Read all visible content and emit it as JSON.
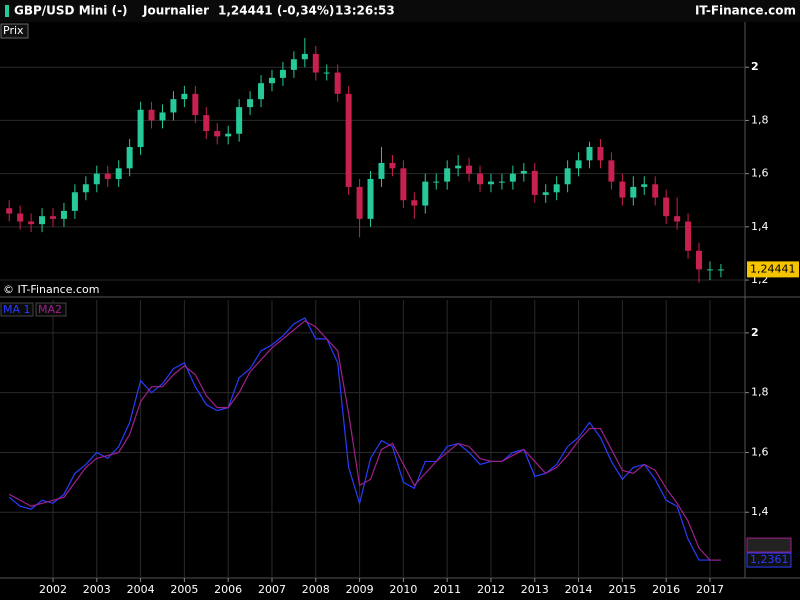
{
  "header": {
    "symbol": "GBP/USD Mini (-)",
    "period": "Journalier",
    "quote": "1,24441 (-0,34%)",
    "time": "13:26:53",
    "brand": "IT-Finance.com"
  },
  "chart_data": [
    {
      "type": "candlestick",
      "label": "Prix",
      "watermark": "© IT-Finance.com",
      "last_label": "1,24441",
      "up_color": "#26c99a",
      "down_color": "#c8204f",
      "grid": true,
      "xlim": [
        2000.79,
        2017.8
      ],
      "ylim": [
        1.14,
        2.17
      ],
      "yticks": [
        {
          "value": 1.2,
          "label": "1,2"
        },
        {
          "value": 1.4,
          "label": "1,4"
        },
        {
          "value": 1.6,
          "label": "1,6"
        },
        {
          "value": 1.8,
          "label": "1,8"
        },
        2
      ],
      "x": [
        2001,
        2001.25,
        2001.5,
        2001.75,
        2002,
        2002.25,
        2002.5,
        2002.75,
        2003,
        2003.25,
        2003.5,
        2003.75,
        2004,
        2004.25,
        2004.5,
        2004.75,
        2005,
        2005.25,
        2005.5,
        2005.75,
        2006,
        2006.25,
        2006.5,
        2006.75,
        2007,
        2007.25,
        2007.5,
        2007.75,
        2008,
        2008.25,
        2008.5,
        2008.75,
        2009,
        2009.25,
        2009.5,
        2009.75,
        2010,
        2010.25,
        2010.5,
        2010.75,
        2011,
        2011.25,
        2011.5,
        2011.75,
        2012,
        2012.25,
        2012.5,
        2012.75,
        2013,
        2013.25,
        2013.5,
        2013.75,
        2014,
        2014.25,
        2014.5,
        2014.75,
        2015,
        2015.25,
        2015.5,
        2015.75,
        2016,
        2016.25,
        2016.5,
        2016.75,
        2017,
        2017.25
      ],
      "open": [
        1.47,
        1.45,
        1.42,
        1.41,
        1.44,
        1.43,
        1.46,
        1.53,
        1.56,
        1.6,
        1.58,
        1.62,
        1.7,
        1.84,
        1.8,
        1.83,
        1.88,
        1.9,
        1.82,
        1.76,
        1.74,
        1.75,
        1.85,
        1.88,
        1.94,
        1.96,
        1.99,
        2.03,
        2.05,
        1.98,
        1.98,
        1.9,
        1.55,
        1.43,
        1.58,
        1.64,
        1.62,
        1.5,
        1.48,
        1.57,
        1.57,
        1.62,
        1.63,
        1.6,
        1.56,
        1.57,
        1.57,
        1.6,
        1.61,
        1.52,
        1.53,
        1.56,
        1.62,
        1.65,
        1.7,
        1.65,
        1.57,
        1.51,
        1.55,
        1.56,
        1.51,
        1.44,
        1.42,
        1.31,
        1.24,
        1.24
      ],
      "high": [
        1.5,
        1.48,
        1.45,
        1.47,
        1.47,
        1.49,
        1.56,
        1.59,
        1.63,
        1.63,
        1.65,
        1.73,
        1.87,
        1.87,
        1.86,
        1.91,
        1.93,
        1.93,
        1.85,
        1.79,
        1.78,
        1.88,
        1.91,
        1.97,
        1.99,
        2.02,
        2.06,
        2.11,
        2.08,
        2.01,
        2.01,
        1.93,
        1.58,
        1.61,
        1.7,
        1.67,
        1.65,
        1.53,
        1.6,
        1.6,
        1.65,
        1.67,
        1.66,
        1.63,
        1.6,
        1.6,
        1.63,
        1.64,
        1.64,
        1.56,
        1.59,
        1.65,
        1.68,
        1.72,
        1.73,
        1.68,
        1.6,
        1.59,
        1.59,
        1.59,
        1.54,
        1.51,
        1.45,
        1.34,
        1.27,
        1.26
      ],
      "low": [
        1.42,
        1.39,
        1.38,
        1.38,
        1.4,
        1.4,
        1.43,
        1.5,
        1.53,
        1.55,
        1.55,
        1.59,
        1.67,
        1.77,
        1.77,
        1.8,
        1.85,
        1.79,
        1.73,
        1.71,
        1.71,
        1.72,
        1.82,
        1.85,
        1.91,
        1.93,
        1.96,
        2.0,
        1.95,
        1.95,
        1.87,
        1.52,
        1.36,
        1.4,
        1.55,
        1.59,
        1.47,
        1.43,
        1.45,
        1.54,
        1.54,
        1.59,
        1.57,
        1.53,
        1.53,
        1.54,
        1.54,
        1.57,
        1.49,
        1.49,
        1.5,
        1.53,
        1.59,
        1.62,
        1.62,
        1.54,
        1.48,
        1.48,
        1.52,
        1.48,
        1.41,
        1.39,
        1.28,
        1.19,
        1.2,
        1.21
      ],
      "close": [
        1.45,
        1.42,
        1.41,
        1.44,
        1.43,
        1.46,
        1.53,
        1.56,
        1.6,
        1.58,
        1.62,
        1.7,
        1.84,
        1.8,
        1.83,
        1.88,
        1.9,
        1.82,
        1.76,
        1.74,
        1.75,
        1.85,
        1.88,
        1.94,
        1.96,
        1.99,
        2.03,
        2.05,
        1.98,
        1.98,
        1.9,
        1.55,
        1.43,
        1.58,
        1.64,
        1.62,
        1.5,
        1.48,
        1.57,
        1.57,
        1.62,
        1.63,
        1.6,
        1.56,
        1.57,
        1.57,
        1.6,
        1.61,
        1.52,
        1.53,
        1.56,
        1.62,
        1.65,
        1.7,
        1.65,
        1.57,
        1.51,
        1.55,
        1.56,
        1.51,
        1.44,
        1.42,
        1.31,
        1.24,
        1.24,
        1.24
      ]
    },
    {
      "type": "line",
      "grid": true,
      "last_label": "1,2361",
      "xlim": [
        2000.79,
        2017.8
      ],
      "ylim": [
        1.18,
        2.11
      ],
      "xticks": [
        2002,
        2003,
        2004,
        2005,
        2006,
        2007,
        2008,
        2009,
        2010,
        2011,
        2012,
        2013,
        2014,
        2015,
        2016,
        2017
      ],
      "yticks": [
        {
          "value": 1.4,
          "label": "1,4"
        },
        {
          "value": 1.6,
          "label": "1,6"
        },
        {
          "value": 1.8,
          "label": "1,8"
        },
        2
      ],
      "x": [
        2001,
        2001.25,
        2001.5,
        2001.75,
        2002,
        2002.25,
        2002.5,
        2002.75,
        2003,
        2003.25,
        2003.5,
        2003.75,
        2004,
        2004.25,
        2004.5,
        2004.75,
        2005,
        2005.25,
        2005.5,
        2005.75,
        2006,
        2006.25,
        2006.5,
        2006.75,
        2007,
        2007.25,
        2007.5,
        2007.75,
        2008,
        2008.25,
        2008.5,
        2008.75,
        2009,
        2009.25,
        2009.5,
        2009.75,
        2010,
        2010.25,
        2010.5,
        2010.75,
        2011,
        2011.25,
        2011.5,
        2011.75,
        2012,
        2012.25,
        2012.5,
        2012.75,
        2013,
        2013.25,
        2013.5,
        2013.75,
        2014,
        2014.25,
        2014.5,
        2014.75,
        2015,
        2015.25,
        2015.5,
        2015.75,
        2016,
        2016.25,
        2016.5,
        2016.75,
        2017,
        2017.25
      ],
      "series": [
        {
          "name": "MA 1",
          "color": "#2a3cff",
          "values": [
            1.45,
            1.42,
            1.41,
            1.44,
            1.43,
            1.46,
            1.53,
            1.56,
            1.6,
            1.58,
            1.62,
            1.7,
            1.84,
            1.8,
            1.83,
            1.88,
            1.9,
            1.82,
            1.76,
            1.74,
            1.75,
            1.85,
            1.88,
            1.94,
            1.96,
            1.99,
            2.03,
            2.05,
            1.98,
            1.98,
            1.9,
            1.55,
            1.43,
            1.58,
            1.64,
            1.62,
            1.5,
            1.48,
            1.57,
            1.57,
            1.62,
            1.63,
            1.6,
            1.56,
            1.57,
            1.57,
            1.6,
            1.61,
            1.52,
            1.53,
            1.56,
            1.62,
            1.65,
            1.7,
            1.65,
            1.57,
            1.51,
            1.55,
            1.56,
            1.51,
            1.44,
            1.42,
            1.31,
            1.24,
            1.24,
            1.24
          ]
        },
        {
          "name": "MA2",
          "color": "#a0208a",
          "values": [
            1.46,
            1.44,
            1.42,
            1.43,
            1.44,
            1.45,
            1.5,
            1.55,
            1.58,
            1.59,
            1.6,
            1.66,
            1.77,
            1.82,
            1.82,
            1.86,
            1.89,
            1.86,
            1.79,
            1.75,
            1.75,
            1.8,
            1.87,
            1.91,
            1.95,
            1.98,
            2.01,
            2.04,
            2.02,
            1.98,
            1.94,
            1.73,
            1.49,
            1.51,
            1.61,
            1.63,
            1.56,
            1.49,
            1.53,
            1.57,
            1.6,
            1.63,
            1.62,
            1.58,
            1.57,
            1.57,
            1.59,
            1.61,
            1.57,
            1.53,
            1.55,
            1.59,
            1.64,
            1.68,
            1.68,
            1.61,
            1.54,
            1.53,
            1.56,
            1.54,
            1.48,
            1.43,
            1.37,
            1.28,
            1.24,
            1.24
          ]
        }
      ]
    }
  ]
}
